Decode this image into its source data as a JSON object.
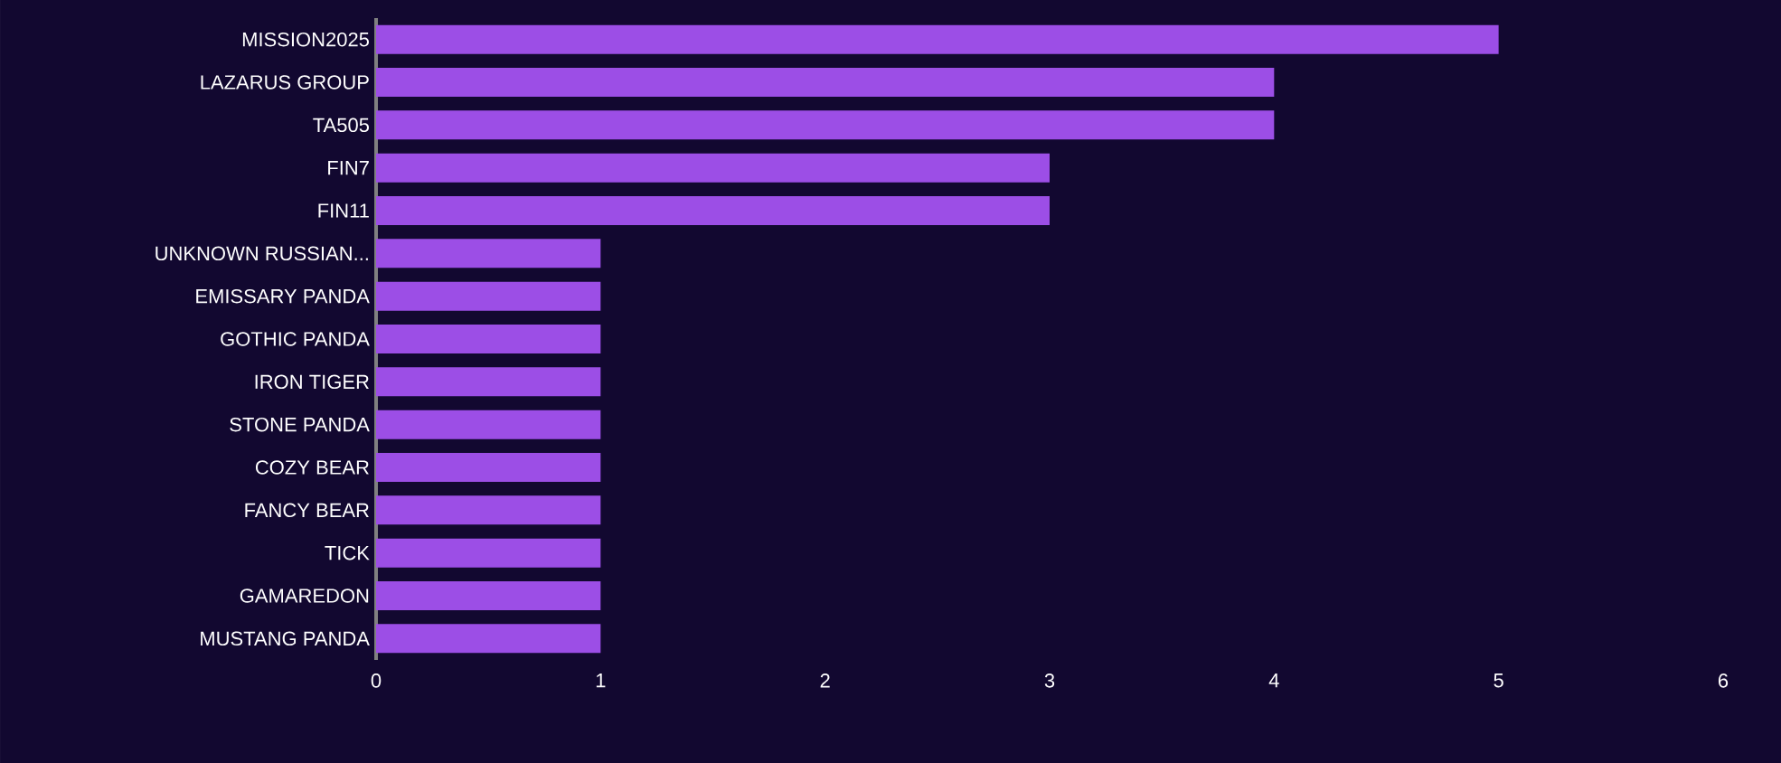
{
  "chart_data": {
    "type": "bar",
    "orientation": "horizontal",
    "categories": [
      "MISSION2025",
      "LAZARUS GROUP",
      "TA505",
      "FIN7",
      "FIN11",
      "UNKNOWN RUSSIAN...",
      "EMISSARY PANDA",
      "GOTHIC PANDA",
      "IRON TIGER",
      "STONE PANDA",
      "COZY BEAR",
      "FANCY BEAR",
      "TICK",
      "GAMAREDON",
      "MUSTANG PANDA"
    ],
    "values": [
      5,
      4,
      4,
      3,
      3,
      1,
      1,
      1,
      1,
      1,
      1,
      1,
      1,
      1,
      1
    ],
    "color": "#9c4ee6",
    "xlim": [
      0,
      6
    ],
    "xticks": [
      0,
      1,
      2,
      3,
      4,
      5,
      6
    ]
  }
}
